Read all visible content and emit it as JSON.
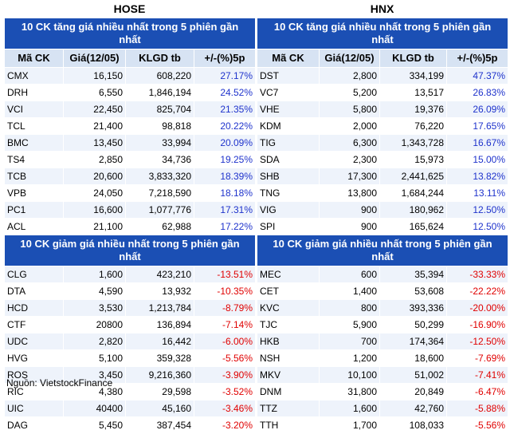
{
  "source": "Nguồn: VietstockFinance",
  "panels": [
    {
      "exchange": "HOSE",
      "gainers_title": "10 CK tăng giá nhiều nhất trong 5 phiên gần nhất",
      "losers_title": "10 CK giảm giá nhiều nhất trong 5 phiên gần nhất",
      "headers": [
        "Mã CK",
        "Giá(12/05)",
        "KLGD tb",
        "+/-(%)5p"
      ],
      "gainers": [
        [
          "CMX",
          "16,150",
          "608,220",
          "27.17%"
        ],
        [
          "DRH",
          "6,550",
          "1,846,194",
          "24.52%"
        ],
        [
          "VCI",
          "22,450",
          "825,704",
          "21.35%"
        ],
        [
          "TCL",
          "21,400",
          "98,818",
          "20.22%"
        ],
        [
          "BMC",
          "13,450",
          "33,994",
          "20.09%"
        ],
        [
          "TS4",
          "2,850",
          "34,736",
          "19.25%"
        ],
        [
          "TCB",
          "20,600",
          "3,833,320",
          "18.39%"
        ],
        [
          "VPB",
          "24,050",
          "7,218,590",
          "18.18%"
        ],
        [
          "PC1",
          "16,600",
          "1,077,776",
          "17.31%"
        ],
        [
          "ACL",
          "21,100",
          "62,988",
          "17.22%"
        ]
      ],
      "losers": [
        [
          "CLG",
          "1,600",
          "423,210",
          "-13.51%"
        ],
        [
          "DTA",
          "4,590",
          "13,932",
          "-10.35%"
        ],
        [
          "HCD",
          "3,530",
          "1,213,784",
          "-8.79%"
        ],
        [
          "CTF",
          "20800",
          "136,894",
          "-7.14%"
        ],
        [
          "UDC",
          "2,820",
          "16,442",
          "-6.00%"
        ],
        [
          "HVG",
          "5,100",
          "359,328",
          "-5.56%"
        ],
        [
          "ROS",
          "3,450",
          "9,216,360",
          "-3.90%"
        ],
        [
          "RIC",
          "4,380",
          "29,598",
          "-3.52%"
        ],
        [
          "UIC",
          "40400",
          "45,160",
          "-3.46%"
        ],
        [
          "DAG",
          "5,450",
          "387,454",
          "-3.20%"
        ]
      ]
    },
    {
      "exchange": "HNX",
      "gainers_title": "10 CK tăng giá nhiều nhất trong 5 phiên gần nhất",
      "losers_title": "10 CK giảm giá nhiều nhất trong 5 phiên gần nhất",
      "headers": [
        "Mã CK",
        "Giá(12/05)",
        "KLGD tb",
        "+/-(%)5p"
      ],
      "gainers": [
        [
          "DST",
          "2,800",
          "334,199",
          "47.37%"
        ],
        [
          "VC7",
          "5,200",
          "13,517",
          "26.83%"
        ],
        [
          "VHE",
          "5,800",
          "19,376",
          "26.09%"
        ],
        [
          "KDM",
          "2,000",
          "76,220",
          "17.65%"
        ],
        [
          "TIG",
          "6,300",
          "1,343,728",
          "16.67%"
        ],
        [
          "SDA",
          "2,300",
          "15,973",
          "15.00%"
        ],
        [
          "SHB",
          "17,300",
          "2,441,625",
          "13.82%"
        ],
        [
          "TNG",
          "13,800",
          "1,684,244",
          "13.11%"
        ],
        [
          "VIG",
          "900",
          "180,962",
          "12.50%"
        ],
        [
          "SPI",
          "900",
          "165,624",
          "12.50%"
        ]
      ],
      "losers": [
        [
          "MEC",
          "600",
          "35,394",
          "-33.33%"
        ],
        [
          "CET",
          "1,400",
          "53,608",
          "-22.22%"
        ],
        [
          "KVC",
          "800",
          "393,336",
          "-20.00%"
        ],
        [
          "TJC",
          "5,900",
          "50,299",
          "-16.90%"
        ],
        [
          "HKB",
          "700",
          "174,364",
          "-12.50%"
        ],
        [
          "NSH",
          "1,200",
          "18,600",
          "-7.69%"
        ],
        [
          "MKV",
          "10,100",
          "51,002",
          "-7.41%"
        ],
        [
          "DNM",
          "31,800",
          "20,849",
          "-6.47%"
        ],
        [
          "TTZ",
          "1,600",
          "42,760",
          "-5.88%"
        ],
        [
          "TTH",
          "1,700",
          "108,033",
          "-5.56%"
        ]
      ]
    }
  ]
}
